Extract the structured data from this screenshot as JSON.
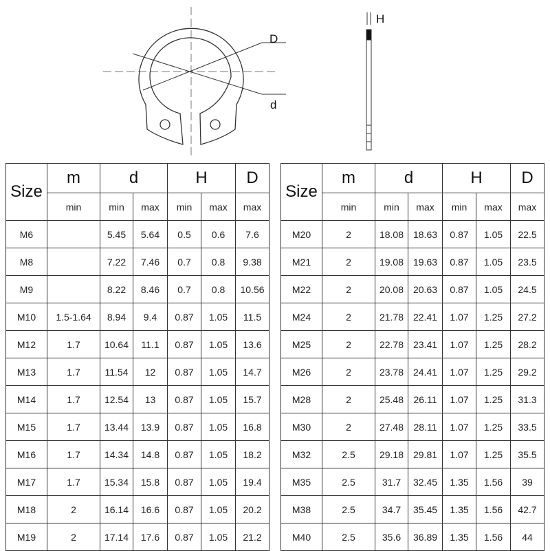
{
  "drawing": {
    "labels": {
      "outer_diameter": "D",
      "inner_diameter": "d",
      "thickness": "H"
    }
  },
  "table_headers": {
    "size": "Size",
    "groups": [
      "m",
      "d",
      "H",
      "D"
    ],
    "subs": [
      "min",
      "min",
      "max",
      "min",
      "max",
      "max"
    ]
  },
  "tables": [
    {
      "rows": [
        [
          "M6",
          "",
          "5.45",
          "5.64",
          "0.5",
          "0.6",
          "7.6"
        ],
        [
          "M8",
          "",
          "7.22",
          "7.46",
          "0.7",
          "0.8",
          "9.38"
        ],
        [
          "M9",
          "",
          "8.22",
          "8.46",
          "0.7",
          "0.8",
          "10.56"
        ],
        [
          "M10",
          "1.5-1.64",
          "8.94",
          "9.4",
          "0.87",
          "1.05",
          "11.5"
        ],
        [
          "M12",
          "1.7",
          "10.64",
          "11.1",
          "0.87",
          "1.05",
          "13.6"
        ],
        [
          "M13",
          "1.7",
          "11.54",
          "12",
          "0.87",
          "1.05",
          "14.7"
        ],
        [
          "M14",
          "1.7",
          "12.54",
          "13",
          "0.87",
          "1.05",
          "15.7"
        ],
        [
          "M15",
          "1.7",
          "13.44",
          "13.9",
          "0.87",
          "1.05",
          "16.8"
        ],
        [
          "M16",
          "1.7",
          "14.34",
          "14.8",
          "0.87",
          "1.05",
          "18.2"
        ],
        [
          "M17",
          "1.7",
          "15.34",
          "15.8",
          "0.87",
          "1.05",
          "19.4"
        ],
        [
          "M18",
          "2",
          "16.14",
          "16.6",
          "0.87",
          "1.05",
          "20.2"
        ],
        [
          "M19",
          "2",
          "17.14",
          "17.6",
          "0.87",
          "1.05",
          "21.2"
        ]
      ]
    },
    {
      "rows": [
        [
          "M20",
          "2",
          "18.08",
          "18.63",
          "0.87",
          "1.05",
          "22.5"
        ],
        [
          "M21",
          "2",
          "19.08",
          "19.63",
          "0.87",
          "1.05",
          "23.5"
        ],
        [
          "M22",
          "2",
          "20.08",
          "20.63",
          "0.87",
          "1.05",
          "24.5"
        ],
        [
          "M24",
          "2",
          "21.78",
          "22.41",
          "1.07",
          "1.25",
          "27.2"
        ],
        [
          "M25",
          "2",
          "22.78",
          "23.41",
          "1.07",
          "1.25",
          "28.2"
        ],
        [
          "M26",
          "2",
          "23.78",
          "24.41",
          "1.07",
          "1.25",
          "29.2"
        ],
        [
          "M28",
          "2",
          "25.48",
          "26.11",
          "1.07",
          "1.25",
          "31.3"
        ],
        [
          "M30",
          "2",
          "27.48",
          "28.11",
          "1.07",
          "1.25",
          "33.5"
        ],
        [
          "M32",
          "2.5",
          "29.18",
          "29.81",
          "1.07",
          "1.25",
          "35.5"
        ],
        [
          "M35",
          "2.5",
          "31.7",
          "32.45",
          "1.35",
          "1.56",
          "39"
        ],
        [
          "M38",
          "2.5",
          "34.7",
          "35.45",
          "1.35",
          "1.56",
          "42.7"
        ],
        [
          "M40",
          "2.5",
          "35.6",
          "36.89",
          "1.35",
          "1.56",
          "44"
        ]
      ]
    }
  ]
}
